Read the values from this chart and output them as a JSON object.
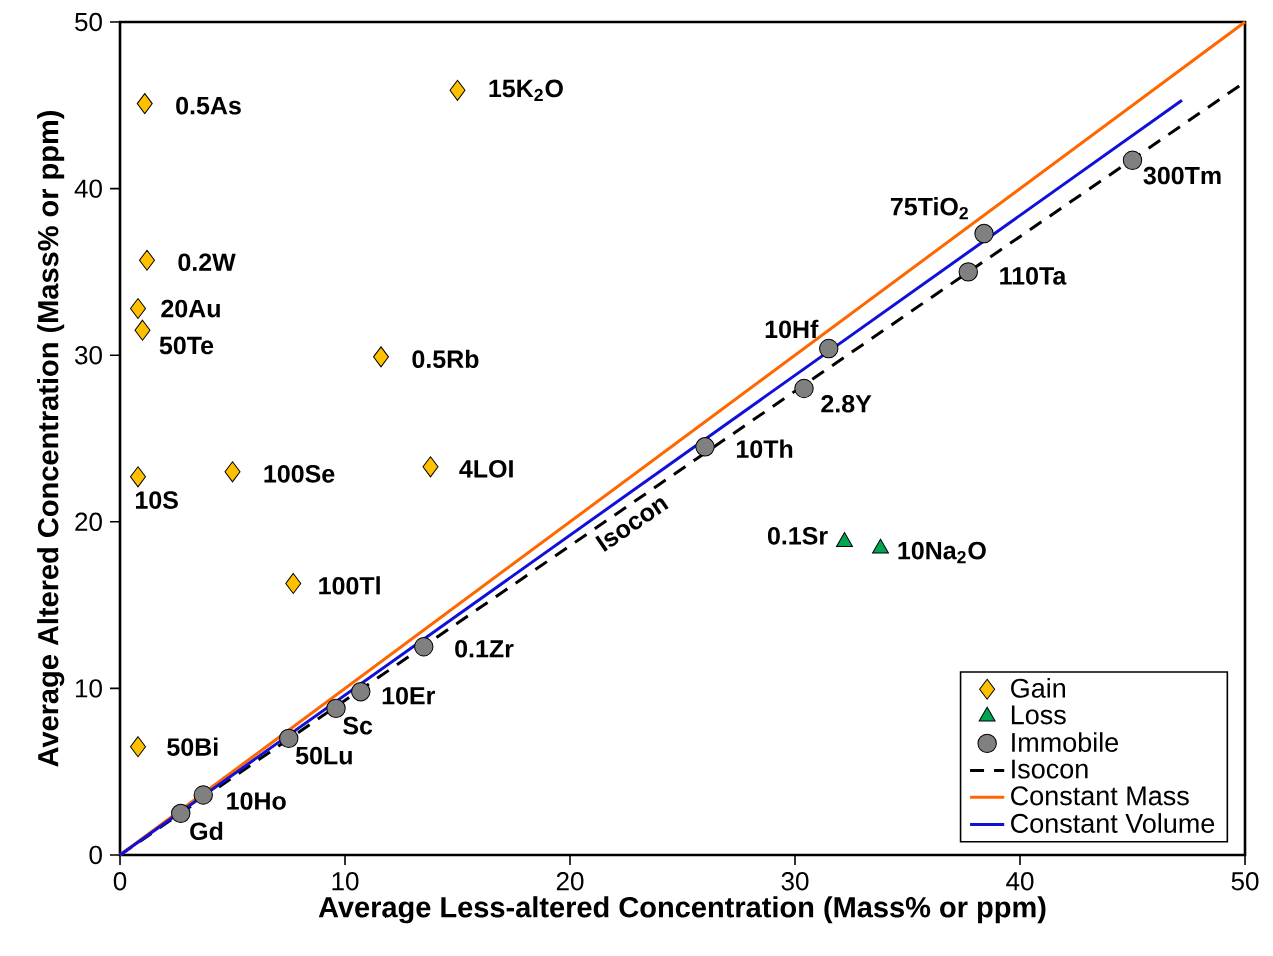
{
  "chart_data": {
    "type": "scatter",
    "xlabel": "Average Less-altered Concentration (Mass% or ppm)",
    "ylabel": "Average Altered Concentration (Mass% or ppm)",
    "xlim": [
      0,
      50
    ],
    "ylim": [
      0,
      50
    ],
    "xticks": [
      0,
      10,
      20,
      30,
      40,
      50
    ],
    "yticks": [
      0,
      10,
      20,
      30,
      40,
      50
    ],
    "legend": "bottom right",
    "series": [
      {
        "name": "Gain",
        "marker": "diamond",
        "color": "#ffc000",
        "x": [
          1.1,
          15.0,
          1.2,
          0.8,
          1.0,
          11.6,
          0.8,
          5.0,
          13.8,
          7.7,
          0.8
        ],
        "values": [
          45.1,
          45.9,
          35.7,
          32.8,
          31.5,
          29.9,
          22.7,
          23.0,
          23.3,
          16.3,
          6.5
        ]
      },
      {
        "name": "Loss",
        "marker": "triangle",
        "color": "#00a550",
        "x": [
          32.2,
          33.8
        ],
        "values": [
          18.8,
          18.4
        ]
      },
      {
        "name": "Immobile",
        "marker": "circle",
        "color": "#808080",
        "x": [
          2.7,
          3.7,
          7.5,
          9.6,
          10.7,
          13.5,
          26.0,
          30.4,
          31.5,
          37.7,
          38.4,
          45.0
        ],
        "values": [
          2.5,
          3.6,
          7.0,
          8.8,
          9.8,
          12.5,
          24.5,
          28.0,
          30.4,
          35.0,
          37.3,
          41.7
        ]
      },
      {
        "name": "Isocon",
        "type": "line",
        "marker": "none",
        "line_style": "dashed",
        "color": "#000000",
        "x": [
          0,
          50
        ],
        "values": [
          0,
          46.4
        ]
      },
      {
        "name": "Constant Mass",
        "type": "line",
        "marker": "none",
        "line_style": "solid",
        "color": "#ff6600",
        "x": [
          0,
          50
        ],
        "values": [
          0,
          50
        ]
      },
      {
        "name": "Constant Volume",
        "type": "line",
        "marker": "none",
        "line_style": "solid",
        "color": "#1010d8",
        "x": [
          0,
          47.2
        ],
        "values": [
          0,
          45.3
        ]
      }
    ],
    "annotations": [
      {
        "text": "0.5As",
        "x": 1.1,
        "y": 45.1
      },
      {
        "text": "15K$_{2}$O",
        "x": 15.0,
        "y": 45.9
      },
      {
        "text": "0.2W",
        "x": 1.2,
        "y": 35.7
      },
      {
        "text": "20Au",
        "x": 0.8,
        "y": 32.8
      },
      {
        "text": "50Te",
        "x": 1.0,
        "y": 31.5
      },
      {
        "text": "0.5Rb",
        "x": 11.6,
        "y": 29.9
      },
      {
        "text": "10S",
        "x": 0.8,
        "y": 22.7
      },
      {
        "text": "100Se",
        "x": 5.0,
        "y": 23.0
      },
      {
        "text": "4LOI",
        "x": 13.8,
        "y": 23.3
      },
      {
        "text": "100Tl",
        "x": 7.7,
        "y": 16.3
      },
      {
        "text": "50Bi",
        "x": 0.8,
        "y": 6.5
      },
      {
        "text": "0.1Sr",
        "x": 32.2,
        "y": 18.8
      },
      {
        "text": "10Na$_{2}$O",
        "x": 33.8,
        "y": 18.4
      },
      {
        "text": "Gd",
        "x": 2.7,
        "y": 2.5
      },
      {
        "text": "10Ho",
        "x": 3.7,
        "y": 3.6
      },
      {
        "text": "50Lu",
        "x": 7.5,
        "y": 7.0
      },
      {
        "text": "Sc",
        "x": 9.6,
        "y": 8.8
      },
      {
        "text": "10Er",
        "x": 10.7,
        "y": 9.8
      },
      {
        "text": "0.1Zr",
        "x": 13.5,
        "y": 12.5
      },
      {
        "text": "10Th",
        "x": 26.0,
        "y": 24.5
      },
      {
        "text": "2.8Y",
        "x": 30.4,
        "y": 28.0
      },
      {
        "text": "10Hf",
        "x": 31.5,
        "y": 30.4
      },
      {
        "text": "110Ta",
        "x": 37.7,
        "y": 35.0
      },
      {
        "text": "75TiO$_{2}$",
        "x": 38.4,
        "y": 37.3
      },
      {
        "text": "300Tm",
        "x": 45.0,
        "y": 41.7
      },
      {
        "text": "Isocon",
        "x": 22.2,
        "y": 20.6
      }
    ]
  }
}
